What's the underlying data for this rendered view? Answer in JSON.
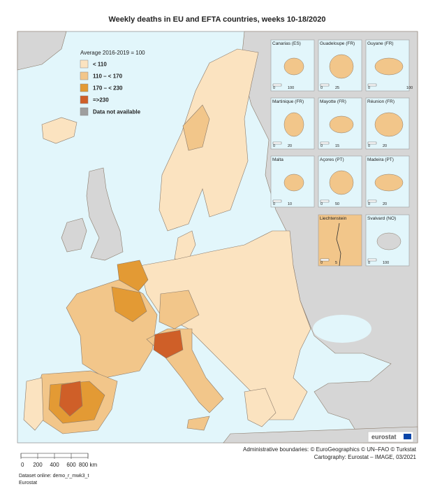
{
  "header": {
    "title": "Weekly deaths in EU and EFTA countries, weeks 10-18/2020"
  },
  "legend": {
    "title": "Average 2016-2019 = 100",
    "items": [
      {
        "label": "< 110",
        "color": "#fbe3c0"
      },
      {
        "label": "110 – < 170",
        "color": "#f2c68a"
      },
      {
        "label": "170 – < 230",
        "color": "#e39a34"
      },
      {
        "label": "=>230",
        "color": "#cf5f28"
      },
      {
        "label": "Data not available",
        "color": "#9e9e9e"
      }
    ]
  },
  "insets": [
    {
      "name": "Canarias (ES)",
      "scale": [
        "0",
        "100"
      ]
    },
    {
      "name": "Guadeloupe (FR)",
      "scale": [
        "0",
        "25"
      ]
    },
    {
      "name": "Guyane (FR)",
      "scale": [
        "0",
        "100"
      ]
    },
    {
      "name": "Martinique (FR)",
      "scale": [
        "0",
        "20"
      ]
    },
    {
      "name": "Mayotte (FR)",
      "scale": [
        "0",
        "15"
      ]
    },
    {
      "name": "Réunion (FR)",
      "scale": [
        "0",
        "20"
      ]
    },
    {
      "name": "Malta",
      "scale": [
        "0",
        "10"
      ]
    },
    {
      "name": "Açores (PT)",
      "scale": [
        "0",
        "50"
      ]
    },
    {
      "name": "Madeira (PT)",
      "scale": [
        "0",
        "20"
      ]
    },
    {
      "name": "Liechtenstein",
      "scale": [
        "0",
        "5"
      ]
    },
    {
      "name": "Svalvard (NO)",
      "scale": [
        "0",
        "100"
      ]
    }
  ],
  "scale_bar": {
    "labels": [
      "0",
      "200",
      "400",
      "600",
      "800 km"
    ]
  },
  "credits": {
    "boundaries": "Administrative boundaries: © EuroGeographics © UN–FAO © Turkstat",
    "cartography": "Cartography: Eurostat – IMAGE, 03/2021",
    "dataset": "Dataset online: demo_r_mwk3_t",
    "source": "Eurostat",
    "logo": "eurostat"
  }
}
